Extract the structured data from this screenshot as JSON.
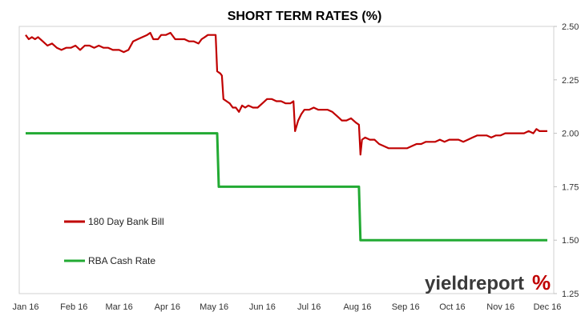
{
  "chart_data": {
    "type": "line",
    "title": "SHORT TERM RATES (%)",
    "x_tick_labels": [
      "Jan 16",
      "Feb 16",
      "Mar 16",
      "Apr 16",
      "May 16",
      "Jun 16",
      "Jul 16",
      "Aug 16",
      "Sep 16",
      "Oct 16",
      "Nov 16",
      "Dec 16"
    ],
    "y_tick_labels": [
      "2.50",
      "2.25",
      "2.00",
      "1.75",
      "1.50",
      "1.25"
    ],
    "ylim": [
      1.25,
      2.5
    ],
    "xlim": [
      "2016-01-01",
      "2016-12-01"
    ],
    "grid": false,
    "legend_position": "bottom-left",
    "watermark": {
      "main": "yieldreport",
      "symbol": "%"
    },
    "series": [
      {
        "name": "180 Day Bank Bill",
        "color": "#c00000",
        "points": [
          [
            "2016-01-01",
            2.46
          ],
          [
            "2016-01-03",
            2.44
          ],
          [
            "2016-01-05",
            2.45
          ],
          [
            "2016-01-07",
            2.44
          ],
          [
            "2016-01-09",
            2.45
          ],
          [
            "2016-01-12",
            2.43
          ],
          [
            "2016-01-15",
            2.41
          ],
          [
            "2016-01-18",
            2.42
          ],
          [
            "2016-01-21",
            2.4
          ],
          [
            "2016-01-24",
            2.39
          ],
          [
            "2016-01-27",
            2.4
          ],
          [
            "2016-01-30",
            2.4
          ],
          [
            "2016-02-02",
            2.41
          ],
          [
            "2016-02-05",
            2.39
          ],
          [
            "2016-02-08",
            2.41
          ],
          [
            "2016-02-11",
            2.41
          ],
          [
            "2016-02-14",
            2.4
          ],
          [
            "2016-02-17",
            2.41
          ],
          [
            "2016-02-20",
            2.4
          ],
          [
            "2016-02-23",
            2.4
          ],
          [
            "2016-02-26",
            2.39
          ],
          [
            "2016-03-01",
            2.39
          ],
          [
            "2016-03-04",
            2.38
          ],
          [
            "2016-03-07",
            2.39
          ],
          [
            "2016-03-10",
            2.43
          ],
          [
            "2016-03-13",
            2.44
          ],
          [
            "2016-03-16",
            2.45
          ],
          [
            "2016-03-19",
            2.46
          ],
          [
            "2016-03-21",
            2.47
          ],
          [
            "2016-03-23",
            2.44
          ],
          [
            "2016-03-26",
            2.44
          ],
          [
            "2016-03-28",
            2.46
          ],
          [
            "2016-03-31",
            2.46
          ],
          [
            "2016-04-03",
            2.47
          ],
          [
            "2016-04-06",
            2.44
          ],
          [
            "2016-04-09",
            2.44
          ],
          [
            "2016-04-12",
            2.44
          ],
          [
            "2016-04-15",
            2.43
          ],
          [
            "2016-04-18",
            2.43
          ],
          [
            "2016-04-21",
            2.42
          ],
          [
            "2016-04-23",
            2.44
          ],
          [
            "2016-04-25",
            2.45
          ],
          [
            "2016-04-27",
            2.46
          ],
          [
            "2016-04-30",
            2.46
          ],
          [
            "2016-05-02",
            2.46
          ],
          [
            "2016-05-03",
            2.29
          ],
          [
            "2016-05-05",
            2.28
          ],
          [
            "2016-05-06",
            2.27
          ],
          [
            "2016-05-07",
            2.16
          ],
          [
            "2016-05-09",
            2.15
          ],
          [
            "2016-05-11",
            2.14
          ],
          [
            "2016-05-13",
            2.12
          ],
          [
            "2016-05-15",
            2.12
          ],
          [
            "2016-05-17",
            2.1
          ],
          [
            "2016-05-19",
            2.13
          ],
          [
            "2016-05-21",
            2.12
          ],
          [
            "2016-05-23",
            2.13
          ],
          [
            "2016-05-26",
            2.12
          ],
          [
            "2016-05-29",
            2.12
          ],
          [
            "2016-06-01",
            2.14
          ],
          [
            "2016-06-04",
            2.16
          ],
          [
            "2016-06-07",
            2.16
          ],
          [
            "2016-06-10",
            2.15
          ],
          [
            "2016-06-13",
            2.15
          ],
          [
            "2016-06-16",
            2.14
          ],
          [
            "2016-06-19",
            2.14
          ],
          [
            "2016-06-21",
            2.15
          ],
          [
            "2016-06-22",
            2.01
          ],
          [
            "2016-06-24",
            2.06
          ],
          [
            "2016-06-26",
            2.09
          ],
          [
            "2016-06-28",
            2.11
          ],
          [
            "2016-07-01",
            2.11
          ],
          [
            "2016-07-04",
            2.12
          ],
          [
            "2016-07-07",
            2.11
          ],
          [
            "2016-07-10",
            2.11
          ],
          [
            "2016-07-13",
            2.11
          ],
          [
            "2016-07-16",
            2.1
          ],
          [
            "2016-07-19",
            2.08
          ],
          [
            "2016-07-22",
            2.06
          ],
          [
            "2016-07-25",
            2.06
          ],
          [
            "2016-07-28",
            2.07
          ],
          [
            "2016-07-31",
            2.05
          ],
          [
            "2016-08-02",
            2.04
          ],
          [
            "2016-08-03",
            1.9
          ],
          [
            "2016-08-04",
            1.97
          ],
          [
            "2016-08-06",
            1.98
          ],
          [
            "2016-08-09",
            1.97
          ],
          [
            "2016-08-12",
            1.97
          ],
          [
            "2016-08-15",
            1.95
          ],
          [
            "2016-08-18",
            1.94
          ],
          [
            "2016-08-21",
            1.93
          ],
          [
            "2016-08-24",
            1.93
          ],
          [
            "2016-08-27",
            1.93
          ],
          [
            "2016-08-30",
            1.93
          ],
          [
            "2016-09-02",
            1.93
          ],
          [
            "2016-09-05",
            1.94
          ],
          [
            "2016-09-08",
            1.95
          ],
          [
            "2016-09-11",
            1.95
          ],
          [
            "2016-09-14",
            1.96
          ],
          [
            "2016-09-17",
            1.96
          ],
          [
            "2016-09-20",
            1.96
          ],
          [
            "2016-09-23",
            1.97
          ],
          [
            "2016-09-26",
            1.96
          ],
          [
            "2016-09-29",
            1.97
          ],
          [
            "2016-10-02",
            1.97
          ],
          [
            "2016-10-05",
            1.97
          ],
          [
            "2016-10-08",
            1.96
          ],
          [
            "2016-10-11",
            1.97
          ],
          [
            "2016-10-14",
            1.98
          ],
          [
            "2016-10-17",
            1.99
          ],
          [
            "2016-10-20",
            1.99
          ],
          [
            "2016-10-23",
            1.99
          ],
          [
            "2016-10-26",
            1.98
          ],
          [
            "2016-10-29",
            1.99
          ],
          [
            "2016-11-01",
            1.99
          ],
          [
            "2016-11-04",
            2.0
          ],
          [
            "2016-11-07",
            2.0
          ],
          [
            "2016-11-10",
            2.0
          ],
          [
            "2016-11-13",
            2.0
          ],
          [
            "2016-11-16",
            2.0
          ],
          [
            "2016-11-19",
            2.01
          ],
          [
            "2016-11-22",
            2.0
          ],
          [
            "2016-11-24",
            2.02
          ],
          [
            "2016-11-26",
            2.01
          ],
          [
            "2016-11-28",
            2.01
          ],
          [
            "2016-12-01",
            2.01
          ]
        ]
      },
      {
        "name": "RBA Cash Rate",
        "color": "#22aa33",
        "points": [
          [
            "2016-01-01",
            2.0
          ],
          [
            "2016-05-03",
            2.0
          ],
          [
            "2016-05-04",
            1.75
          ],
          [
            "2016-08-02",
            1.75
          ],
          [
            "2016-08-03",
            1.5
          ],
          [
            "2016-12-01",
            1.5
          ]
        ]
      }
    ]
  }
}
